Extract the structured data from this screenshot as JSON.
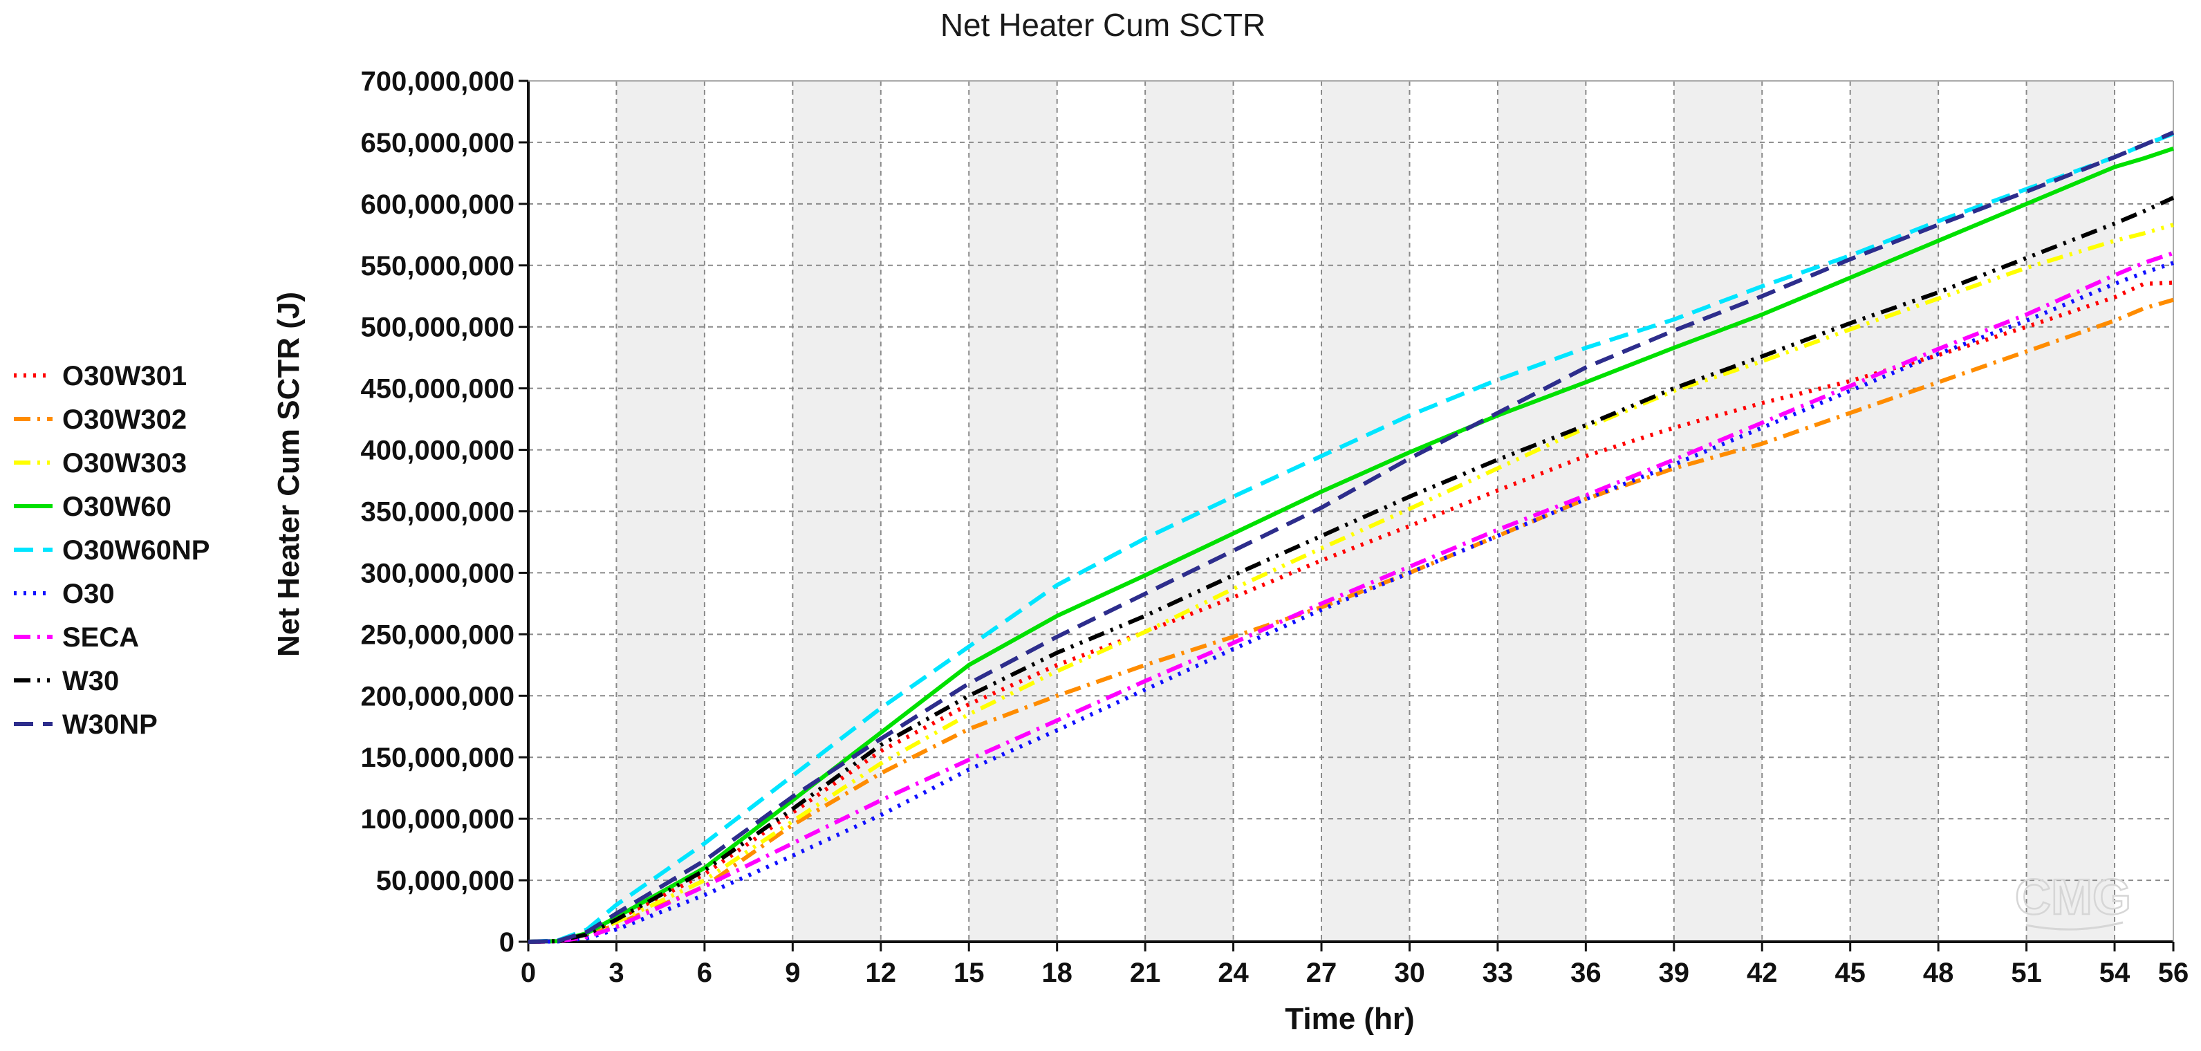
{
  "chart_data": {
    "type": "line",
    "title": "Net Heater Cum SCTR",
    "xlabel": "Time (hr)",
    "ylabel": "Net Heater Cum SCTR (J)",
    "xlim": [
      0,
      56
    ],
    "ylim": [
      0,
      700000000
    ],
    "x_ticks": [
      "0",
      "3",
      "6",
      "9",
      "12",
      "15",
      "18",
      "21",
      "24",
      "27",
      "30",
      "33",
      "36",
      "39",
      "42",
      "45",
      "48",
      "51",
      "54",
      "56"
    ],
    "y_ticks": [
      "0",
      "50,000,000",
      "100,000,000",
      "150,000,000",
      "200,000,000",
      "250,000,000",
      "300,000,000",
      "350,000,000",
      "400,000,000",
      "450,000,000",
      "500,000,000",
      "550,000,000",
      "600,000,000",
      "650,000,000",
      "700,000,000"
    ],
    "grid": true,
    "legend_position": "left",
    "watermark": "CMG",
    "x": [
      0,
      1,
      2,
      3,
      6,
      9,
      12,
      15,
      18,
      21,
      24,
      27,
      30,
      33,
      36,
      39,
      42,
      45,
      48,
      51,
      54,
      55,
      56
    ],
    "series": [
      {
        "name": "O30W301",
        "color": "#ff0000",
        "dash": "dotted",
        "values": [
          0,
          500000,
          6000000,
          18000000,
          55000000,
          105000000,
          155000000,
          193000000,
          225000000,
          252000000,
          280000000,
          310000000,
          338000000,
          367000000,
          395000000,
          418000000,
          438000000,
          456000000,
          477000000,
          500000000,
          524000000,
          535000000,
          536000000
        ]
      },
      {
        "name": "O30W302",
        "color": "#ff8c00",
        "dash": "dashdot",
        "values": [
          0,
          500000,
          5000000,
          14000000,
          45000000,
          95000000,
          137000000,
          173000000,
          200000000,
          225000000,
          248000000,
          272000000,
          300000000,
          330000000,
          360000000,
          385000000,
          405000000,
          430000000,
          455000000,
          480000000,
          505000000,
          515000000,
          522000000
        ]
      },
      {
        "name": "O30W303",
        "color": "#ffff00",
        "dash": "dashdotdot",
        "values": [
          0,
          500000,
          6000000,
          16000000,
          50000000,
          98000000,
          145000000,
          185000000,
          220000000,
          252000000,
          287000000,
          320000000,
          352000000,
          385000000,
          418000000,
          448000000,
          472000000,
          498000000,
          523000000,
          548000000,
          570000000,
          576000000,
          583000000
        ]
      },
      {
        "name": "O30W60",
        "color": "#00e000",
        "dash": "solid",
        "values": [
          0,
          500000,
          7000000,
          20000000,
          60000000,
          115000000,
          170000000,
          225000000,
          265000000,
          298000000,
          332000000,
          366000000,
          398000000,
          428000000,
          455000000,
          483000000,
          510000000,
          540000000,
          570000000,
          600000000,
          630000000,
          637000000,
          645000000
        ]
      },
      {
        "name": "O30W60NP",
        "color": "#00e5ff",
        "dash": "dashed",
        "values": [
          0,
          1000000,
          10000000,
          30000000,
          80000000,
          135000000,
          190000000,
          240000000,
          290000000,
          328000000,
          362000000,
          395000000,
          428000000,
          457000000,
          483000000,
          506000000,
          533000000,
          558000000,
          586000000,
          612000000,
          638000000,
          648000000,
          657000000
        ]
      },
      {
        "name": "O30",
        "color": "#1010ff",
        "dash": "dotted",
        "values": [
          0,
          300000,
          3000000,
          10000000,
          38000000,
          70000000,
          103000000,
          140000000,
          172000000,
          205000000,
          238000000,
          270000000,
          300000000,
          330000000,
          360000000,
          388000000,
          418000000,
          448000000,
          478000000,
          505000000,
          535000000,
          544000000,
          552000000
        ]
      },
      {
        "name": "SECA",
        "color": "#ff00ff",
        "dash": "dashdot",
        "values": [
          0,
          300000,
          4000000,
          12000000,
          45000000,
          80000000,
          115000000,
          148000000,
          180000000,
          212000000,
          243000000,
          275000000,
          305000000,
          335000000,
          363000000,
          392000000,
          422000000,
          452000000,
          482000000,
          510000000,
          542000000,
          552000000,
          560000000
        ]
      },
      {
        "name": "W30",
        "color": "#000000",
        "dash": "dashdotdot",
        "values": [
          0,
          500000,
          6000000,
          18000000,
          58000000,
          108000000,
          160000000,
          200000000,
          235000000,
          265000000,
          298000000,
          330000000,
          362000000,
          392000000,
          420000000,
          450000000,
          476000000,
          503000000,
          528000000,
          556000000,
          584000000,
          594000000,
          605000000
        ]
      },
      {
        "name": "W30NP",
        "color": "#2d2d8c",
        "dash": "dashed",
        "values": [
          0,
          700000,
          8000000,
          23000000,
          66000000,
          118000000,
          165000000,
          210000000,
          248000000,
          283000000,
          318000000,
          353000000,
          393000000,
          430000000,
          467000000,
          497000000,
          525000000,
          555000000,
          583000000,
          610000000,
          638000000,
          648000000,
          658000000
        ]
      }
    ]
  }
}
